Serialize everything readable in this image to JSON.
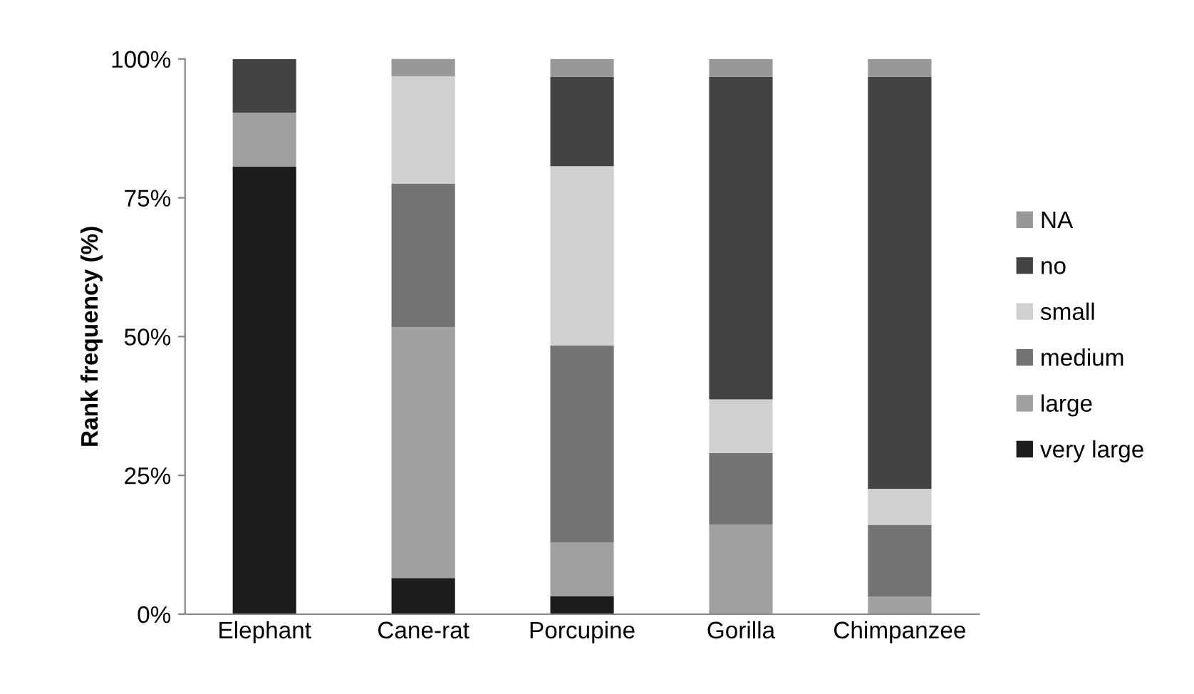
{
  "chart_data": {
    "type": "bar",
    "stacked": true,
    "ylabel": "Rank frequency (%)",
    "categories": [
      "Elephant",
      "Cane-rat",
      "Porcupine",
      "Gorilla",
      "Chimpanzee"
    ],
    "series": [
      {
        "name": "very large",
        "color": "#1c1c1c",
        "values": [
          80.6,
          6.5,
          3.2,
          0,
          0
        ]
      },
      {
        "name": "large",
        "color": "#a0a0a0",
        "values": [
          9.7,
          45.2,
          9.7,
          16.1,
          3.2
        ]
      },
      {
        "name": "medium",
        "color": "#737373",
        "values": [
          0,
          25.8,
          35.5,
          12.9,
          12.9
        ]
      },
      {
        "name": "small",
        "color": "#d0d0d0",
        "values": [
          0,
          19.4,
          32.3,
          9.7,
          6.5
        ]
      },
      {
        "name": "no",
        "color": "#434343",
        "values": [
          9.7,
          0,
          16.1,
          58.1,
          74.2
        ]
      },
      {
        "name": "NA",
        "color": "#989898",
        "values": [
          0,
          3.2,
          3.2,
          3.2,
          3.2
        ]
      }
    ],
    "ylim": [
      0,
      100
    ],
    "yticks": [
      {
        "value": 0,
        "label": "0%"
      },
      {
        "value": 25,
        "label": "25%"
      },
      {
        "value": 50,
        "label": "50%"
      },
      {
        "value": 75,
        "label": "75%"
      },
      {
        "value": 100,
        "label": "100%"
      }
    ],
    "grid": false,
    "legend": "right"
  }
}
